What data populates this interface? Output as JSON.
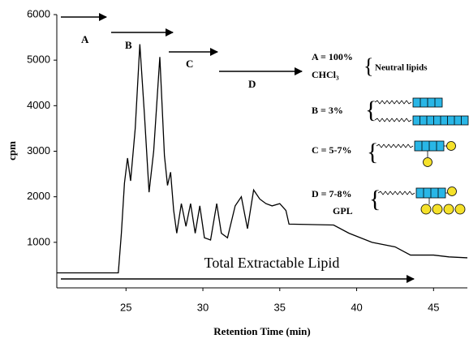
{
  "chart_data": {
    "type": "line",
    "x_label": "Retention Time (min)",
    "y_label": "cpm",
    "xlim": [
      20.5,
      47.2
    ],
    "xticks": [
      25,
      30,
      35,
      40,
      45
    ],
    "ylim": [
      0,
      6000
    ],
    "yticks": [
      1000,
      2000,
      3000,
      4000,
      5000,
      6000
    ],
    "series": [
      {
        "color": "#000000",
        "x": [
          20.5,
          24.5,
          24.7,
          24.9,
          25.1,
          25.3,
          25.6,
          25.9,
          26.2,
          26.5,
          26.8,
          27.2,
          27.5,
          27.7,
          27.9,
          28.1,
          28.3,
          28.6,
          28.9,
          29.2,
          29.5,
          29.8,
          30.1,
          30.5,
          30.9,
          31.2,
          31.6,
          32.1,
          32.5,
          32.9,
          33.3,
          33.7,
          34.1,
          34.5,
          35.0,
          35.4,
          35.6,
          38.5,
          39.5,
          41.0,
          42.5,
          43.5,
          45.0,
          46.0,
          47.2
        ],
        "values": [
          330,
          330,
          1200,
          2300,
          2850,
          2350,
          3500,
          5350,
          3800,
          2100,
          3000,
          5070,
          2900,
          2250,
          2540,
          1700,
          1200,
          1850,
          1350,
          1850,
          1200,
          1800,
          1100,
          1050,
          1850,
          1200,
          1100,
          1800,
          2000,
          1300,
          2150,
          1950,
          1850,
          1800,
          1850,
          1700,
          1400,
          1380,
          1200,
          1000,
          900,
          720,
          720,
          680,
          660
        ]
      }
    ],
    "annotations": {
      "a": "A",
      "b": "B",
      "c": "C",
      "d": "D",
      "total": "Total Extractable Lipid",
      "a_pct": "A = 100%",
      "chcl3": "CHCl₃",
      "neutral": "Neutral lipids",
      "b_pct": "B = 3%",
      "c_pct": "C = 5-7%",
      "d_pct": "D = 7-8%",
      "gpl": "GPL"
    }
  }
}
